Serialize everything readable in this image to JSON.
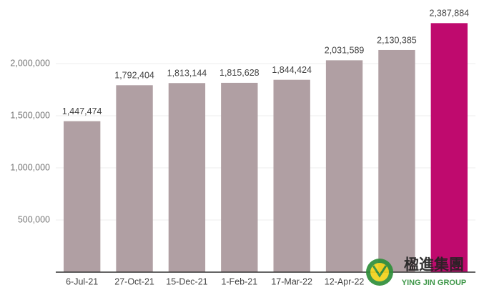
{
  "chart_data": {
    "type": "bar",
    "categories": [
      "6-Jul-21",
      "27-Oct-21",
      "15-Dec-21",
      "1-Feb-21",
      "17-Mar-22",
      "12-Apr-22",
      null,
      null
    ],
    "values": [
      1447474,
      1792404,
      1813144,
      1815628,
      1844424,
      2031589,
      2130385,
      2387884
    ],
    "value_labels": [
      "1,447,474",
      "1,792,404",
      "1,813,144",
      "1,815,628",
      "1,844,424",
      "2,031,589",
      "2,130,385",
      "2,387,884"
    ],
    "colors": [
      "#b09fa3",
      "#b09fa3",
      "#b09fa3",
      "#b09fa3",
      "#b09fa3",
      "#b09fa3",
      "#b09fa3",
      "#bf0a6e"
    ],
    "ylim": [
      0,
      2500000
    ],
    "yticks": [
      {
        "value": 500000,
        "label": "500,000"
      },
      {
        "value": 1000000,
        "label": "1,000,000"
      },
      {
        "value": 1500000,
        "label": "1,500,000"
      },
      {
        "value": 2000000,
        "label": "2,000,000"
      }
    ],
    "grid": true
  },
  "watermark": {
    "chinese": "楹進集團",
    "english": "YING JIN GROUP"
  }
}
